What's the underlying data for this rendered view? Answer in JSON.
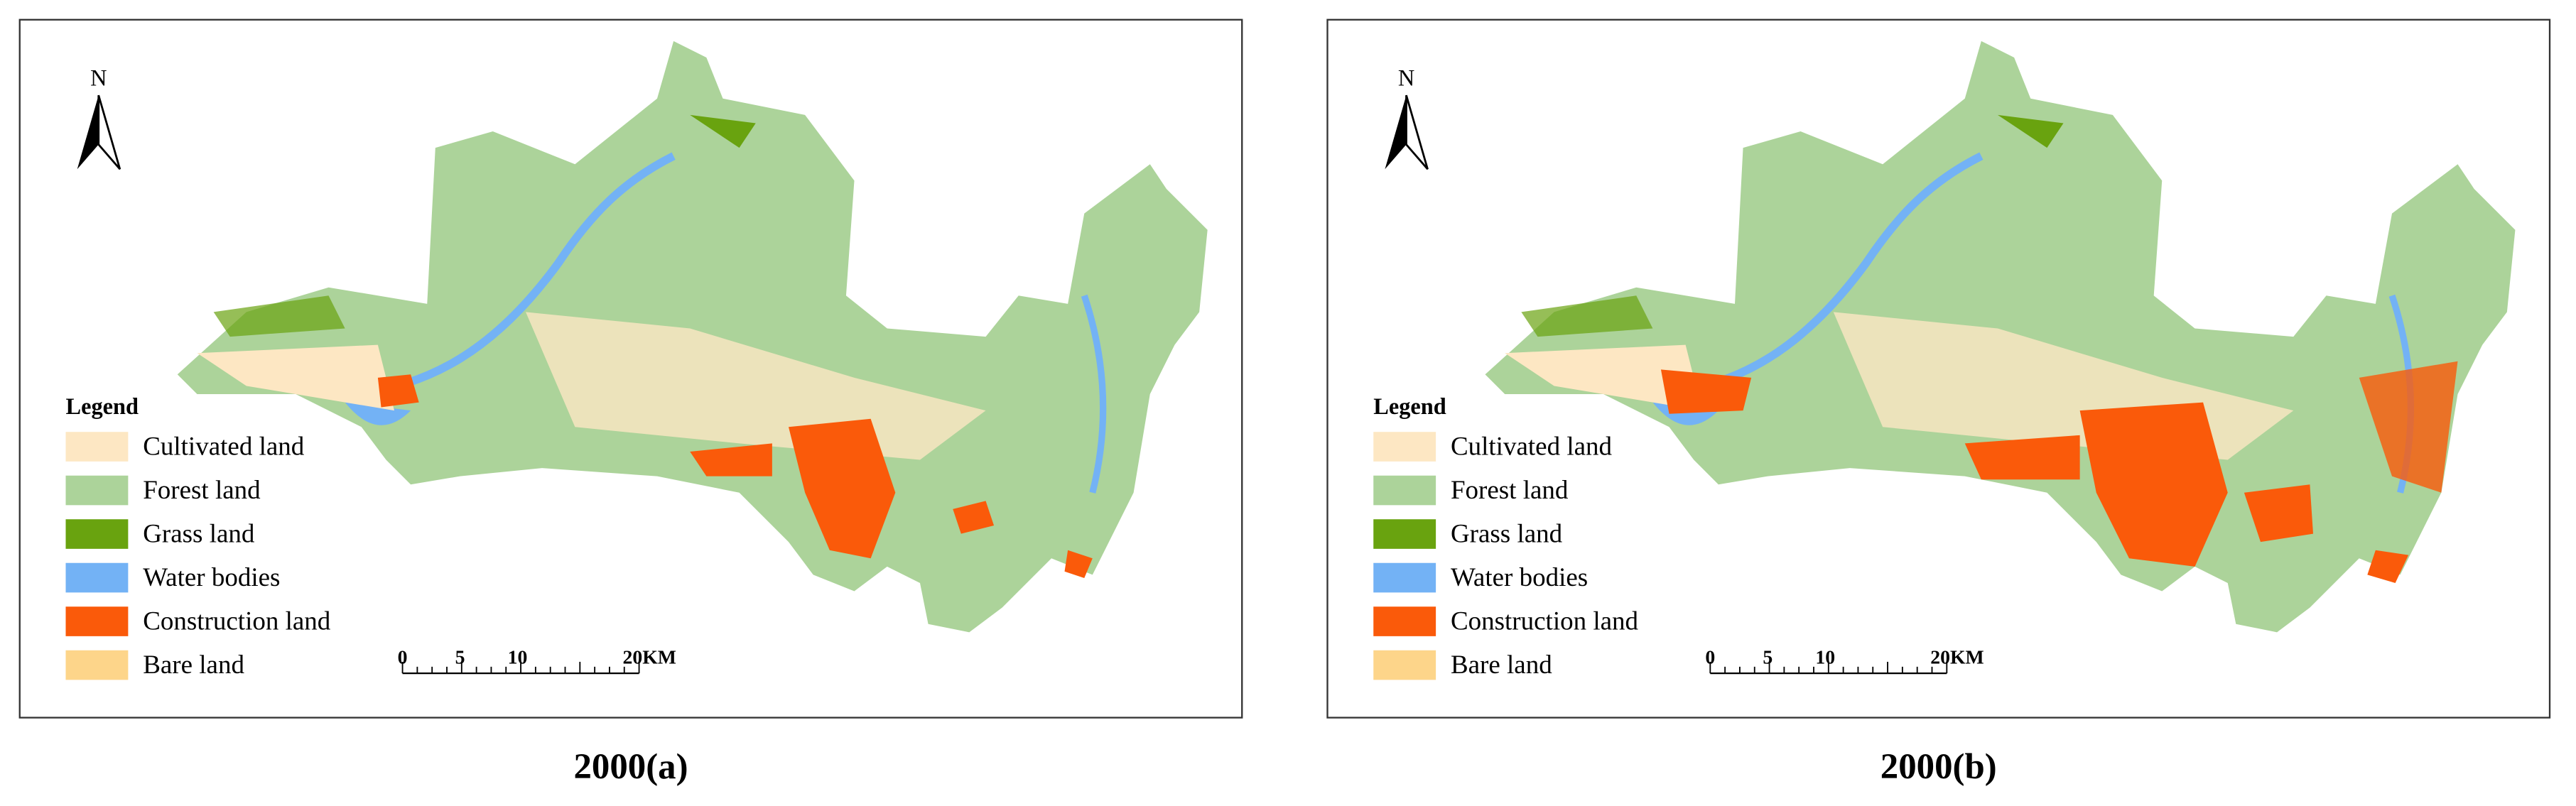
{
  "panels": [
    {
      "caption": "2000(a)",
      "north": "N",
      "legend": {
        "title": "Legend",
        "items": [
          {
            "label": "Cultivated land",
            "color": "#fde7c3"
          },
          {
            "label": "Forest land",
            "color": "#acd39a"
          },
          {
            "label": "Grass land",
            "color": "#69a30f"
          },
          {
            "label": "Water bodies",
            "color": "#73b2f5"
          },
          {
            "label": "Construction land",
            "color": "#fa5a0a"
          },
          {
            "label": "Bare land",
            "color": "#fdd58a"
          }
        ]
      },
      "scale": [
        "0",
        "5",
        "10",
        "20KM"
      ]
    },
    {
      "caption": "2000(b)",
      "north": "N",
      "legend": {
        "title": "Legend",
        "items": [
          {
            "label": "Cultivated land",
            "color": "#fde7c3"
          },
          {
            "label": "Forest land",
            "color": "#acd39a"
          },
          {
            "label": "Grass land",
            "color": "#69a30f"
          },
          {
            "label": "Water bodies",
            "color": "#73b2f5"
          },
          {
            "label": "Construction land",
            "color": "#fa5a0a"
          },
          {
            "label": "Bare land",
            "color": "#fdd58a"
          }
        ]
      },
      "scale": [
        "0",
        "5",
        "10",
        "20KM"
      ]
    }
  ]
}
